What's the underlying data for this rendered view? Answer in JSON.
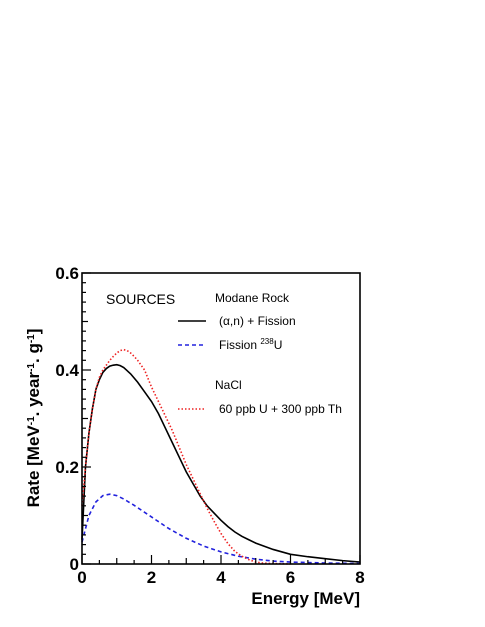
{
  "chart_data": {
    "type": "line",
    "xlabel": "Energy [MeV]",
    "ylabel_main": "Rate [MeV",
    "ylabel_exp1": "-1",
    "ylabel_mid": ". year",
    "ylabel_exp2": "-1",
    "ylabel_mid2": ". g",
    "ylabel_exp3": "-1",
    "ylabel_close": "]",
    "xlim": [
      0,
      8
    ],
    "ylim": [
      0,
      0.6
    ],
    "xticks_major": [
      0,
      2,
      4,
      6,
      8
    ],
    "yticks_major": [
      0,
      0.2,
      0.4,
      0.6
    ],
    "xtick_labels": [
      "0",
      "2",
      "4",
      "6",
      "8"
    ],
    "ytick_labels": [
      "0",
      "0.2",
      "0.4",
      "0.6"
    ],
    "annotation": "SOURCES",
    "legend_group1_title": "Modane Rock",
    "legend_group2_title": "NaCl",
    "series": [
      {
        "name": "(α,n) + Fission",
        "color": "#000000",
        "dash": "solid",
        "x": [
          0.0,
          0.1,
          0.2,
          0.3,
          0.4,
          0.5,
          0.6,
          0.7,
          0.8,
          0.9,
          1.0,
          1.1,
          1.2,
          1.4,
          1.6,
          1.8,
          2.0,
          2.2,
          2.4,
          2.6,
          2.8,
          3.0,
          3.2,
          3.4,
          3.6,
          3.8,
          4.0,
          4.2,
          4.4,
          4.6,
          4.8,
          5.0,
          5.5,
          6.0,
          6.5,
          7.0,
          7.5,
          8.0
        ],
        "y": [
          0.05,
          0.2,
          0.27,
          0.32,
          0.36,
          0.38,
          0.395,
          0.403,
          0.408,
          0.41,
          0.411,
          0.409,
          0.405,
          0.392,
          0.375,
          0.355,
          0.335,
          0.31,
          0.28,
          0.25,
          0.22,
          0.19,
          0.165,
          0.14,
          0.12,
          0.105,
          0.09,
          0.077,
          0.066,
          0.057,
          0.05,
          0.043,
          0.03,
          0.02,
          0.015,
          0.011,
          0.007,
          0.004
        ]
      },
      {
        "name": "Fission 238U",
        "name_base": "Fission ",
        "name_sup": "238",
        "name_tail": "U",
        "color": "#2222dd",
        "dash": "dashed",
        "x": [
          0.0,
          0.2,
          0.4,
          0.6,
          0.8,
          1.0,
          1.2,
          1.5,
          2.0,
          2.5,
          3.0,
          3.5,
          4.0,
          4.5,
          5.0,
          5.5,
          6.0,
          7.0,
          8.0
        ],
        "y": [
          0.045,
          0.1,
          0.128,
          0.141,
          0.144,
          0.141,
          0.134,
          0.121,
          0.097,
          0.073,
          0.053,
          0.037,
          0.025,
          0.016,
          0.01,
          0.006,
          0.004,
          0.002,
          0.001
        ]
      },
      {
        "name": "60 ppb U + 300 ppb Th",
        "color": "#ee2222",
        "dash": "dotted",
        "x": [
          0.0,
          0.1,
          0.2,
          0.3,
          0.4,
          0.5,
          0.6,
          0.7,
          0.8,
          0.9,
          1.0,
          1.1,
          1.2,
          1.3,
          1.4,
          1.5,
          1.6,
          1.8,
          2.0,
          2.2,
          2.4,
          2.6,
          2.8,
          3.0,
          3.2,
          3.4,
          3.6,
          3.8,
          4.0,
          4.2,
          4.4,
          4.6,
          4.8,
          5.0,
          5.2,
          5.5,
          6.0
        ],
        "y": [
          0.12,
          0.2,
          0.27,
          0.32,
          0.36,
          0.385,
          0.4,
          0.41,
          0.42,
          0.428,
          0.435,
          0.44,
          0.442,
          0.44,
          0.435,
          0.428,
          0.42,
          0.4,
          0.365,
          0.335,
          0.305,
          0.275,
          0.24,
          0.205,
          0.175,
          0.145,
          0.115,
          0.088,
          0.063,
          0.042,
          0.026,
          0.016,
          0.009,
          0.004,
          0.002,
          0.001,
          0.0
        ]
      }
    ]
  }
}
